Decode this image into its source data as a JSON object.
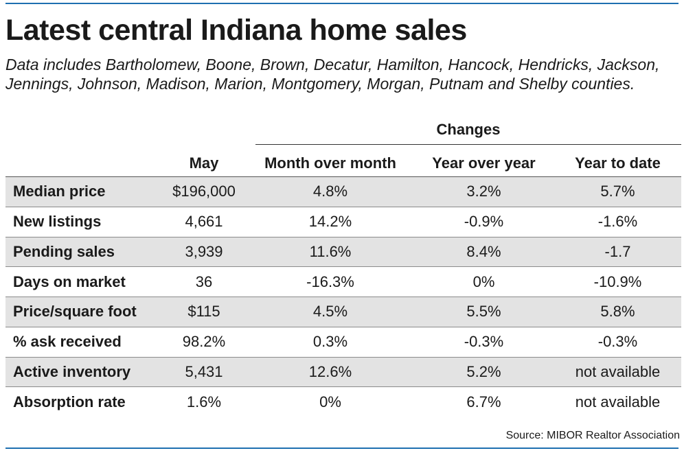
{
  "chart_data": {
    "type": "table",
    "title": "Latest central Indiana home sales",
    "subtitle": "Data includes Bartholomew, Boone, Brown, Decatur, Hamilton, Hancock, Hendricks, Jackson, Jennings, Johnson, Madison, Marion, Montgomery, Morgan, Putnam and Shelby counties.",
    "group_header": "Changes",
    "columns": [
      "",
      "May",
      "Month over month",
      "Year over year",
      "Year to date"
    ],
    "rows": [
      [
        "Median price",
        "$196,000",
        "4.8%",
        "3.2%",
        "5.7%"
      ],
      [
        "New listings",
        "4,661",
        "14.2%",
        "-0.9%",
        "-1.6%"
      ],
      [
        "Pending sales",
        "3,939",
        "11.6%",
        "8.4%",
        "-1.7"
      ],
      [
        "Days on market",
        "36",
        "-16.3%",
        "0%",
        "-10.9%"
      ],
      [
        "Price/square foot",
        "$115",
        "4.5%",
        "5.5%",
        "5.8%"
      ],
      [
        "% ask received",
        "98.2%",
        "0.3%",
        "-0.3%",
        "-0.3%"
      ],
      [
        "Active inventory",
        "5,431",
        "12.6%",
        "5.2%",
        "not available"
      ],
      [
        "Absorption rate",
        "1.6%",
        "0%",
        "6.7%",
        "not available"
      ]
    ],
    "source": "Source: MIBOR Realtor Association"
  },
  "colors": {
    "accent_rule": "#1e6fb0",
    "row_shade": "#e3e3e3"
  }
}
